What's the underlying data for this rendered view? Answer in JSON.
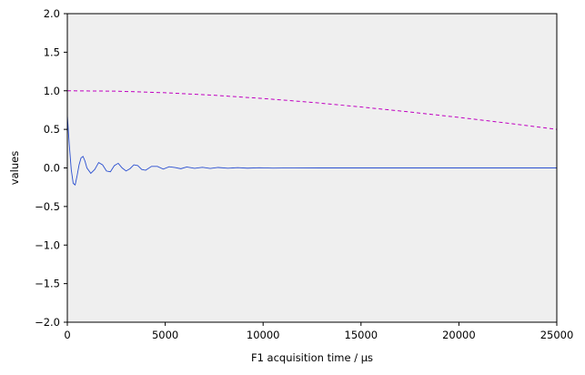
{
  "chart_data": {
    "type": "line",
    "xlabel": "F1 acquisition time / µs",
    "ylabel": "values",
    "xlim": [
      0,
      25000
    ],
    "ylim": [
      -2.0,
      2.0
    ],
    "xticks": [
      0,
      5000,
      10000,
      15000,
      20000,
      25000
    ],
    "xtick_labels": [
      "0",
      "5000",
      "10000",
      "15000",
      "20000",
      "25000"
    ],
    "yticks": [
      -2.0,
      -1.5,
      -1.0,
      -0.5,
      0.0,
      0.5,
      1.0,
      1.5,
      2.0
    ],
    "ytick_labels": [
      "−2.0",
      "−1.5",
      "−1.0",
      "−0.5",
      "0.0",
      "0.5",
      "1.0",
      "1.5",
      "2.0"
    ],
    "grid": false,
    "background_color": "#efefef",
    "series": [
      {
        "style": "dashed",
        "color": "#c000c0",
        "x": [
          0,
          2500,
          5000,
          7500,
          10000,
          12500,
          15000,
          17500,
          20000,
          22500,
          25000
        ],
        "y": [
          1.0,
          0.995,
          0.975,
          0.942,
          0.9,
          0.85,
          0.79,
          0.725,
          0.655,
          0.58,
          0.5
        ]
      },
      {
        "style": "solid",
        "color": "#2a4fd0",
        "x": [
          0,
          100,
          200,
          300,
          400,
          500,
          600,
          700,
          800,
          900,
          1000,
          1200,
          1400,
          1600,
          1800,
          2000,
          2200,
          2400,
          2600,
          2800,
          3000,
          3200,
          3400,
          3600,
          3800,
          4000,
          4300,
          4600,
          4900,
          5200,
          5500,
          5800,
          6100,
          6500,
          6900,
          7300,
          7700,
          8200,
          8700,
          9200,
          9800,
          10500,
          11500,
          13000,
          15000,
          18000,
          21000,
          25000
        ],
        "y": [
          0.68,
          0.3,
          -0.02,
          -0.2,
          -0.22,
          -0.1,
          0.04,
          0.13,
          0.15,
          0.09,
          0.0,
          -0.07,
          -0.02,
          0.07,
          0.04,
          -0.04,
          -0.05,
          0.03,
          0.06,
          0.0,
          -0.04,
          -0.01,
          0.04,
          0.03,
          -0.02,
          -0.03,
          0.02,
          0.02,
          -0.015,
          0.015,
          0.005,
          -0.01,
          0.012,
          -0.005,
          0.008,
          -0.006,
          0.006,
          -0.004,
          0.004,
          -0.003,
          0.002,
          -0.002,
          0.001,
          0.0,
          0.0,
          0.0,
          0.0,
          0.0
        ]
      }
    ]
  }
}
